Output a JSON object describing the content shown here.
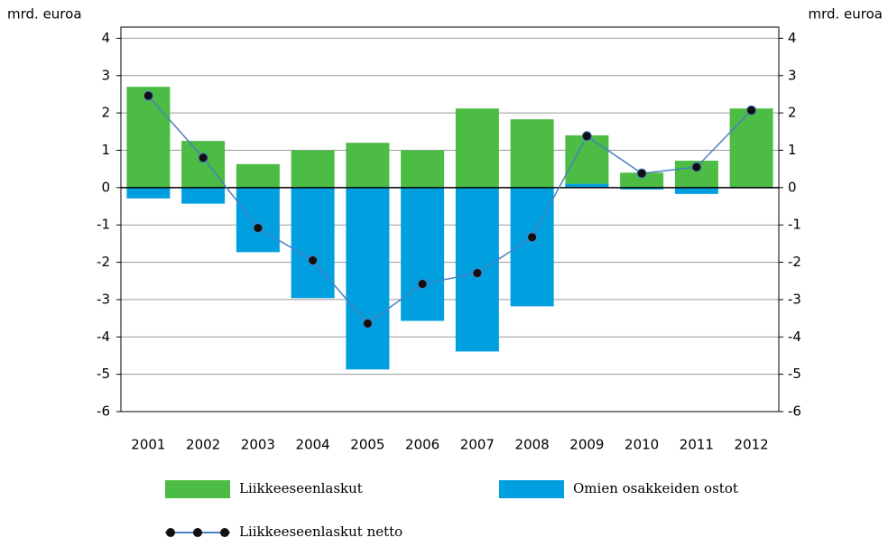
{
  "chart_data": {
    "type": "bar",
    "y_label": "mrd. euroa",
    "y2_label": "mrd. euroa",
    "categories": [
      "2001",
      "2002",
      "2003",
      "2004",
      "2005",
      "2006",
      "2007",
      "2008",
      "2009",
      "2010",
      "2011",
      "2012"
    ],
    "series": [
      {
        "name": "Liikkeeseenlaskut",
        "color": "#4cbc44",
        "type": "bar",
        "values": [
          2.7,
          1.25,
          0.63,
          1.0,
          1.2,
          1.0,
          2.12,
          1.83,
          1.4,
          0.4,
          0.72,
          2.12
        ]
      },
      {
        "name": "Omien osakkeiden ostot",
        "color": "#00a0e0",
        "type": "bar",
        "values": [
          -0.29,
          -0.43,
          -1.73,
          -2.96,
          -4.87,
          -3.57,
          -4.39,
          -3.18,
          0.1,
          -0.05,
          -0.17,
          -0.02
        ]
      },
      {
        "name": "Liikkeeseenlaskut netto",
        "color": "#4a7fc0",
        "marker_color": "#111111",
        "type": "line",
        "values": [
          2.46,
          0.8,
          -1.08,
          -1.95,
          -3.64,
          -2.58,
          -2.29,
          -1.33,
          1.38,
          0.38,
          0.55,
          2.07
        ]
      }
    ],
    "ylim": [
      -6,
      4.3
    ],
    "yticks": [
      -6,
      -5,
      -4,
      -3,
      -2,
      -1,
      0,
      1,
      2,
      3,
      4
    ],
    "y2lim": [
      -6,
      4.3
    ],
    "y2ticks": [
      -6,
      -5,
      -4,
      -3,
      -2,
      -1,
      0,
      1,
      2,
      3,
      4
    ],
    "grid": true
  }
}
